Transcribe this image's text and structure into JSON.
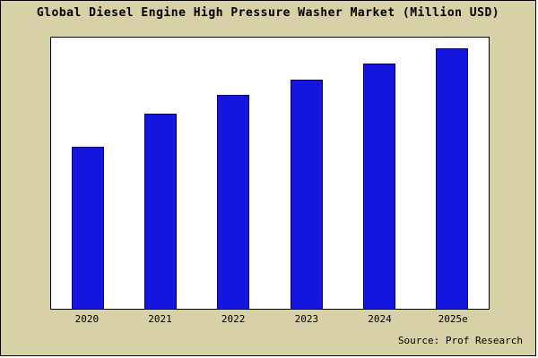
{
  "chart_data": {
    "type": "bar",
    "title": "Global Diesel Engine High Pressure Washer Market (Million USD)",
    "categories": [
      "2020",
      "2021",
      "2022",
      "2023",
      "2024",
      "2025e"
    ],
    "values": [
      62,
      75,
      82,
      88,
      94,
      100
    ],
    "xlabel": "",
    "ylabel": "",
    "ylim": [
      0,
      104
    ],
    "grid": false,
    "legend": "none",
    "bar_fill_color": "#1515e0",
    "bar_border_color": "#00007a",
    "plot_background": "#ffffff",
    "page_background": "#d6d1a7",
    "source": "Source: Prof Research"
  }
}
